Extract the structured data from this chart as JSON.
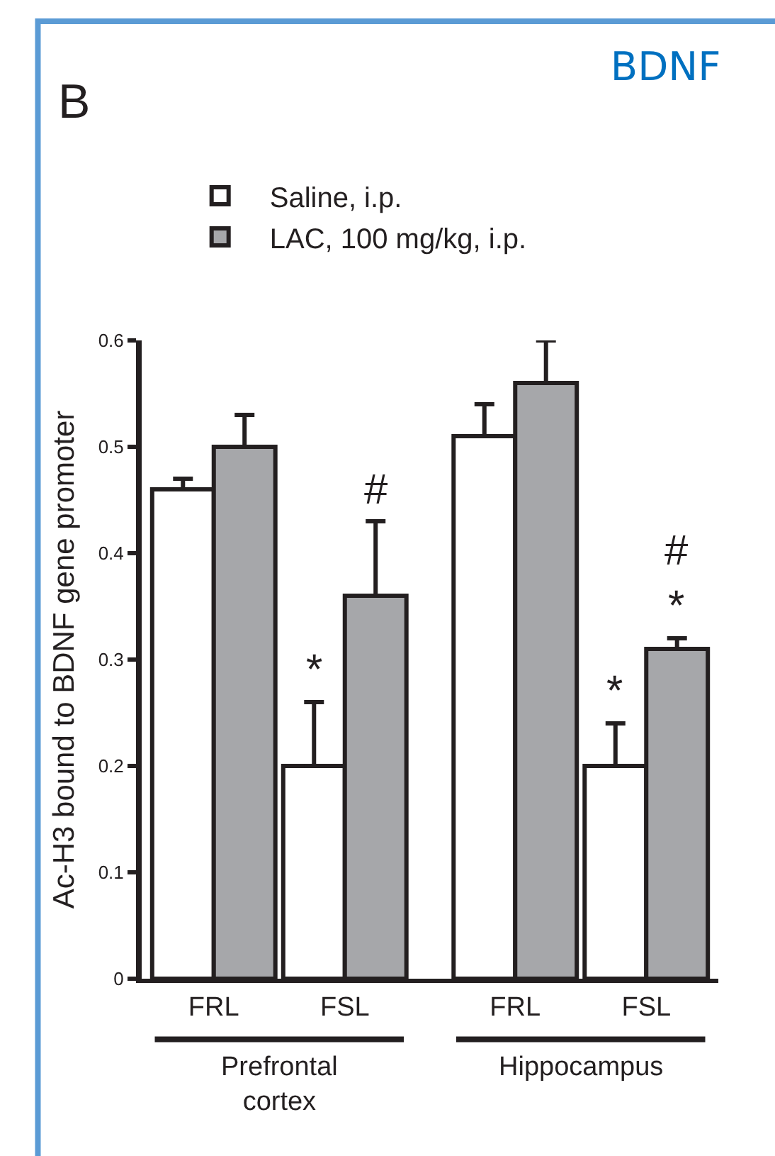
{
  "chart_data": {
    "type": "bar",
    "title": "BDNF",
    "ylabel": "Ac-H3 bound to BDNF gene promoter",
    "categories": [
      "FRL",
      "FSL",
      "FRL",
      "FSL"
    ],
    "series": [
      {
        "name": "Saline, i.p.",
        "color": "#ffffff",
        "values": [
          0.46,
          0.2,
          0.51,
          0.2
        ],
        "errors": [
          [
            0.46,
            0.47
          ],
          [
            0.2,
            0.26
          ],
          [
            0.51,
            0.54
          ],
          [
            0.2,
            0.24
          ]
        ]
      },
      {
        "name": "LAC, 100 mg/kg, i.p.",
        "color": "#a6a7aa",
        "values": [
          0.5,
          0.36,
          0.56,
          0.31
        ],
        "errors": [
          [
            0.5,
            0.53
          ],
          [
            0.36,
            0.43
          ],
          [
            0.56,
            0.6
          ],
          [
            0.31,
            0.32
          ]
        ]
      }
    ],
    "ylim": [
      0,
      0.6
    ],
    "yticks": [
      0,
      0.1,
      0.2,
      0.3,
      0.4,
      0.5,
      0.6
    ],
    "legend": "top left",
    "annotations": [
      "B",
      "Prefrontal cortex",
      "Hippocampus",
      "*",
      "#",
      "*",
      "#\n*"
    ]
  }
}
